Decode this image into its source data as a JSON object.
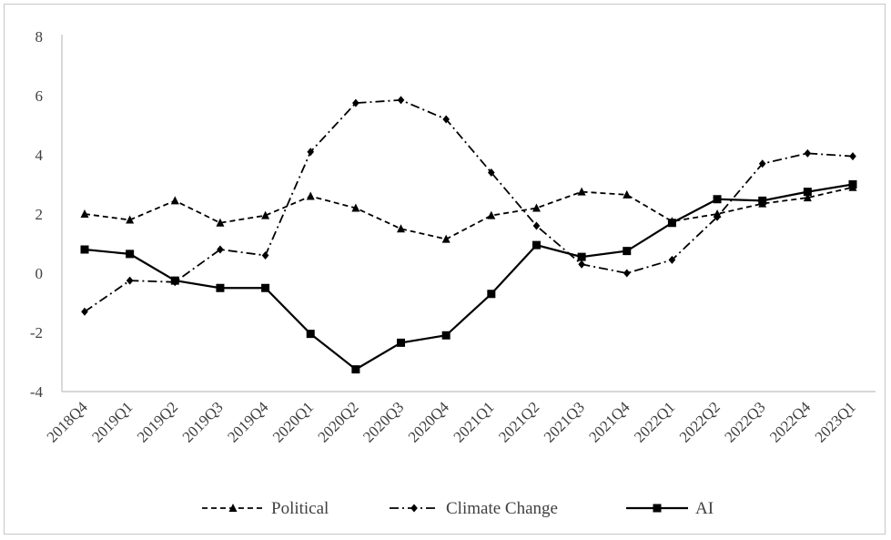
{
  "chart_data": {
    "type": "line",
    "title": "",
    "xlabel": "",
    "ylabel": "",
    "categories": [
      "2018Q4",
      "2019Q1",
      "2019Q2",
      "2019Q3",
      "2019Q4",
      "2020Q1",
      "2020Q2",
      "2020Q3",
      "2020Q4",
      "2021Q1",
      "2021Q2",
      "2021Q3",
      "2021Q4",
      "2022Q1",
      "2022Q2",
      "2022Q3",
      "2022Q4",
      "2023Q1"
    ],
    "ylim": [
      -4,
      8
    ],
    "yticks": [
      "8",
      "6",
      "4",
      "2",
      "0",
      "-2",
      "-4"
    ],
    "grid": false,
    "legend_position": "bottom",
    "series": [
      {
        "name": "Political",
        "line_style": "dashed",
        "marker": "triangle",
        "color": "#000000",
        "values": [
          2.0,
          1.8,
          2.45,
          1.7,
          1.95,
          2.6,
          2.2,
          1.5,
          1.15,
          1.95,
          2.2,
          2.75,
          2.65,
          1.75,
          2.0,
          2.35,
          2.55,
          2.9
        ]
      },
      {
        "name": "Climate Change",
        "line_style": "dash-dot",
        "marker": "diamond",
        "color": "#000000",
        "values": [
          -1.3,
          -0.25,
          -0.3,
          0.8,
          0.6,
          4.1,
          5.75,
          5.85,
          5.2,
          3.4,
          1.6,
          0.3,
          0.0,
          0.45,
          1.9,
          3.7,
          4.05,
          3.95
        ]
      },
      {
        "name": "AI",
        "line_style": "solid",
        "marker": "square",
        "color": "#000000",
        "values": [
          0.8,
          0.65,
          -0.25,
          -0.5,
          -0.5,
          -2.05,
          -3.25,
          -2.35,
          -2.1,
          -0.7,
          0.95,
          0.55,
          0.75,
          1.7,
          2.5,
          2.45,
          2.75,
          3.0
        ]
      }
    ]
  }
}
